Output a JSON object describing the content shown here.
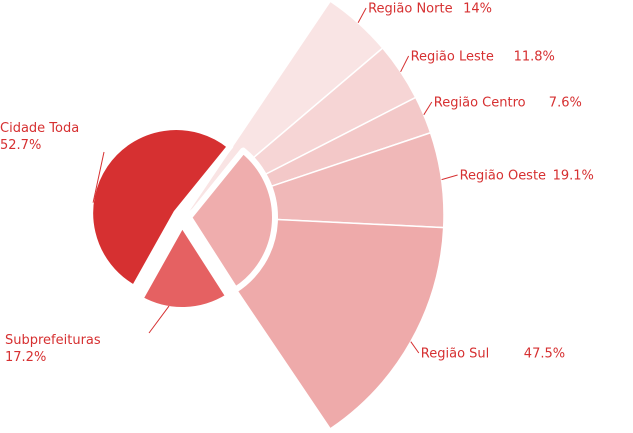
{
  "chart_data": {
    "type": "pie",
    "subtype": "pie-of-pie-exploded",
    "main": {
      "slices": [
        {
          "label": "Cidade Toda",
          "value": 52.7,
          "value_label": "52.7%",
          "color": "#d63031"
        },
        {
          "label": "Subprefeituras",
          "value": 17.2,
          "value_label": "17.2%",
          "color": "#e56162"
        },
        {
          "label": "",
          "value": 30.1,
          "value_label": "",
          "color": "#efadad"
        }
      ]
    },
    "breakdown": {
      "slices": [
        {
          "label": "Região Norte",
          "value": 14.0,
          "value_label": "14%",
          "color": "#f9e4e4"
        },
        {
          "label": "Região Leste",
          "value": 11.8,
          "value_label": "11.8%",
          "color": "#f6d5d5"
        },
        {
          "label": "Região Centro",
          "value": 7.6,
          "value_label": "7.6%",
          "color": "#f3c8c8"
        },
        {
          "label": "Região Oeste",
          "value": 19.1,
          "value_label": "19.1%",
          "color": "#f0b8b8"
        },
        {
          "label": "Região Sul",
          "value": 47.5,
          "value_label": "47.5%",
          "color": "#eeaaaa"
        }
      ]
    },
    "colors": {
      "label_text": "#d63031",
      "connector": "#d63031"
    }
  }
}
